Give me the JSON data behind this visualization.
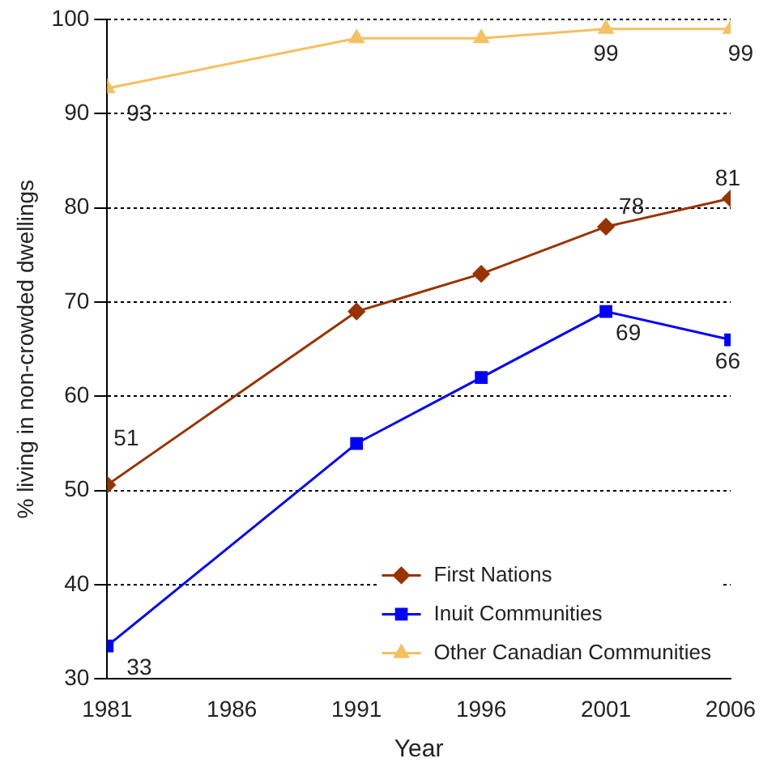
{
  "chart_data": {
    "type": "line",
    "xlabel": "Year",
    "ylabel": "% living in non-crowded dwellings",
    "x": [
      1981,
      1991,
      1996,
      2001,
      2006
    ],
    "xlim": [
      1981,
      2006
    ],
    "xticks": [
      1981,
      1986,
      1991,
      1996,
      2001,
      2006
    ],
    "ylim": [
      30,
      100
    ],
    "yticks": [
      30,
      40,
      50,
      60,
      70,
      80,
      90,
      100
    ],
    "grid": "y",
    "legend": "bottom right",
    "line_style": "solid",
    "series": [
      {
        "name": "First Nations",
        "color": "#993300",
        "marker": "diamond",
        "values": [
          50.6,
          69,
          73,
          78,
          81
        ],
        "value_labels": [
          "51",
          null,
          null,
          "78",
          "81"
        ]
      },
      {
        "name": "Inuit Communities",
        "color": "#0000ff",
        "marker": "square",
        "values": [
          33.5,
          55,
          62,
          69,
          66
        ],
        "value_labels": [
          "33",
          null,
          null,
          "69",
          "66"
        ]
      },
      {
        "name": "Other Canadian Communities",
        "color": "#f5c060",
        "marker": "triangle",
        "values": [
          92.7,
          98,
          98,
          99,
          99
        ],
        "value_labels": [
          "93",
          null,
          null,
          "99",
          "99"
        ]
      }
    ]
  }
}
